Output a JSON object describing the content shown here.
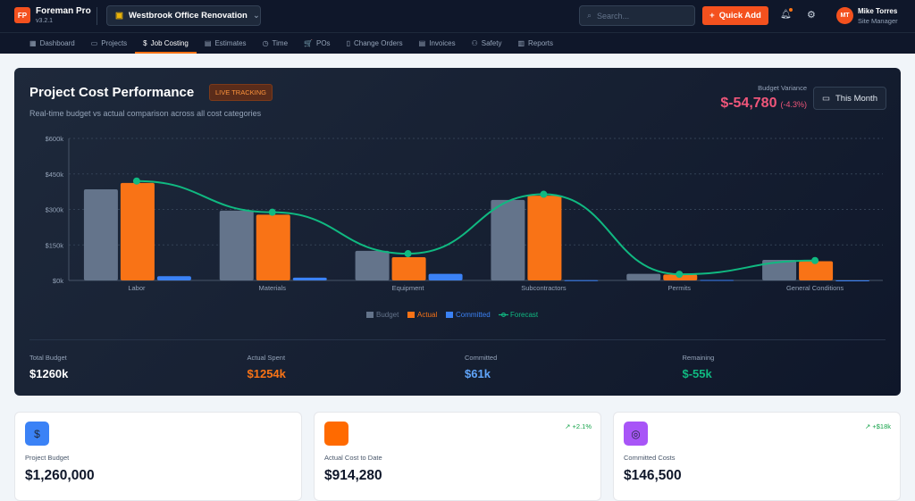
{
  "app": {
    "logo": "FP",
    "name": "Foreman Pro",
    "version": "v3.2.1"
  },
  "project": {
    "name": "Westbrook Office Renovation",
    "icon": "folder-icon"
  },
  "search": {
    "placeholder": "Search..."
  },
  "quick_add": "Quick Add",
  "user": {
    "initials": "MT",
    "name": "Mike Torres",
    "role": "Site Manager"
  },
  "nav": [
    {
      "label": "Dashboard",
      "icon": "▦"
    },
    {
      "label": "Projects",
      "icon": "▭"
    },
    {
      "label": "Job Costing",
      "icon": "$",
      "active": true
    },
    {
      "label": "Estimates",
      "icon": "▤"
    },
    {
      "label": "Time",
      "icon": "◷"
    },
    {
      "label": "POs",
      "icon": "🛒"
    },
    {
      "label": "Change Orders",
      "icon": "▯"
    },
    {
      "label": "Invoices",
      "icon": "▤"
    },
    {
      "label": "Safety",
      "icon": "⚇"
    },
    {
      "label": "Reports",
      "icon": "▥"
    }
  ],
  "perf": {
    "title": "Project Cost Performance",
    "badge": "LIVE TRACKING",
    "subtitle": "Real-time budget vs actual comparison across all cost categories",
    "variance_label": "Budget Variance",
    "variance": "$-54,780",
    "variance_pct": "(-4.3%)",
    "period": "This Month"
  },
  "colors": {
    "budget": "#64748b",
    "actual": "#f97316",
    "committed": "#3b82f6",
    "forecast": "#10b981",
    "variance": "#f0567a"
  },
  "chart_data": {
    "type": "bar",
    "categories": [
      "Labor",
      "Materials",
      "Equipment",
      "Subcontractors",
      "Permits",
      "General Conditions"
    ],
    "series": [
      {
        "name": "Budget",
        "type": "bar",
        "values": [
          385000,
          295000,
          125000,
          340000,
          28000,
          87000
        ]
      },
      {
        "name": "Actual",
        "type": "bar",
        "values": [
          412000,
          278000,
          98000,
          358000,
          25000,
          81000
        ]
      },
      {
        "name": "Committed",
        "type": "bar",
        "values": [
          18000,
          12000,
          28000,
          1000,
          2000,
          0
        ]
      },
      {
        "name": "Forecast",
        "type": "line",
        "values": [
          420000,
          288000,
          113000,
          364000,
          26000,
          84000
        ]
      }
    ],
    "yticks": [
      "$0k",
      "$150k",
      "$300k",
      "$450k",
      "$600k"
    ],
    "ylim": [
      0,
      600000
    ],
    "grid": true,
    "legend": "bottom"
  },
  "summary": [
    {
      "label": "Total Budget",
      "value": "$1260k",
      "color": "#ffffff"
    },
    {
      "label": "Actual Spent",
      "value": "$1254k",
      "color": "#f97316"
    },
    {
      "label": "Committed",
      "value": "$61k",
      "color": "#60a5fa"
    },
    {
      "label": "Remaining",
      "value": "$-55k",
      "color": "#10b981"
    }
  ],
  "kpis": [
    {
      "label": "Project Budget",
      "value": "$1,260,000",
      "icon": "$",
      "icon_name": "dollar-icon",
      "color": "#3b82f6",
      "trend": ""
    },
    {
      "label": "Actual Cost to Date",
      "value": "$914,280",
      "icon": "",
      "icon_name": "cost-icon",
      "color": "#ff6a00",
      "trend": "↗ +2.1%"
    },
    {
      "label": "Committed Costs",
      "value": "$146,500",
      "icon": "◎",
      "icon_name": "target-icon",
      "color": "#a855f7",
      "trend": "↗ +$18k"
    }
  ]
}
